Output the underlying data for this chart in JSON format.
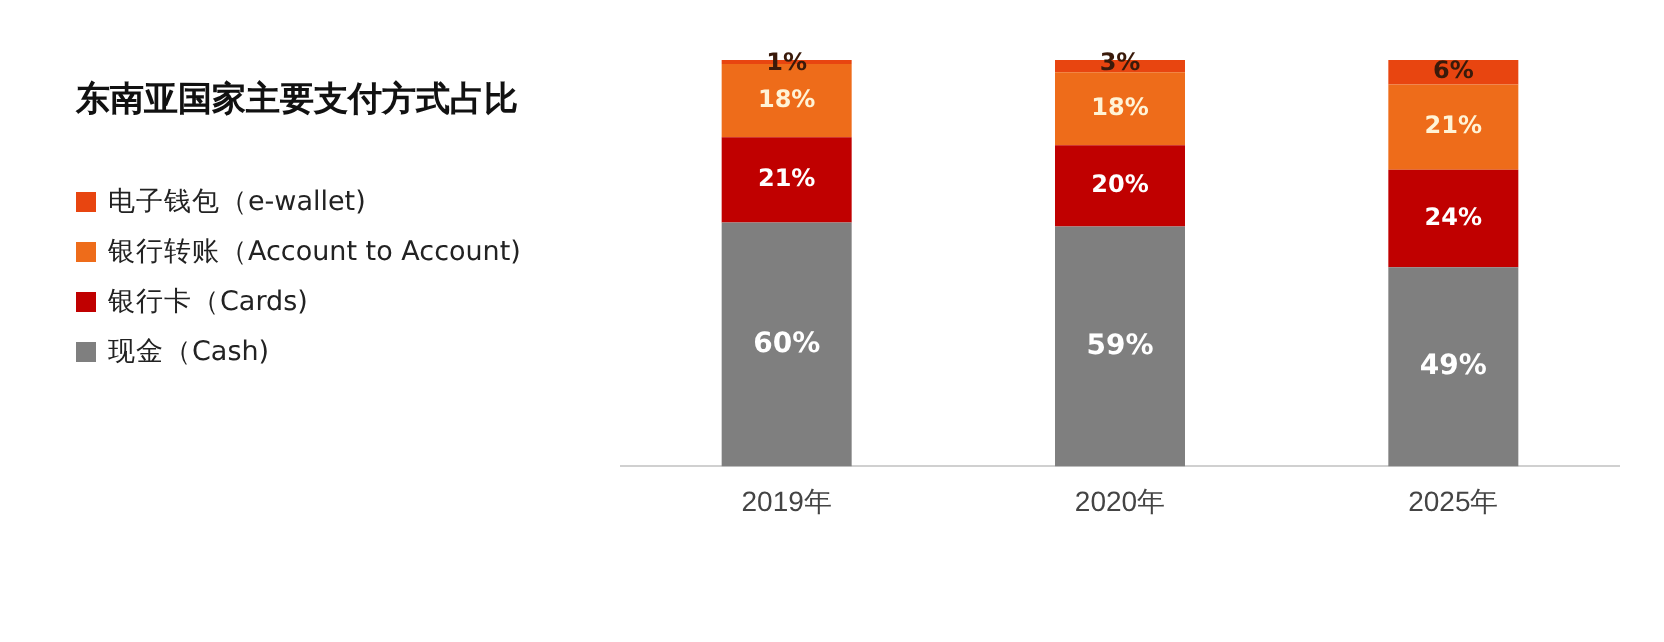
{
  "chart_data": {
    "type": "bar",
    "title": "东南亚国家主要支付方式占比",
    "categories": [
      "2019年",
      "2020年",
      "2025年"
    ],
    "stacked": true,
    "legend": "left",
    "grid": false,
    "series": [
      {
        "name": "现金（Cash)",
        "color": "#7f7f7f",
        "values": [
          60,
          59,
          49
        ],
        "value_labels": [
          "60%",
          "59%",
          "49%"
        ]
      },
      {
        "name": "银行卡（Cards)",
        "color": "#c00000",
        "values": [
          21,
          20,
          24
        ],
        "value_labels": [
          "21%",
          "20%",
          "24%"
        ]
      },
      {
        "name": "银行转账（Account to Account)",
        "color": "#ee6c1a",
        "values": [
          18,
          18,
          21
        ],
        "value_labels": [
          "18%",
          "18%",
          "21%"
        ]
      },
      {
        "name": "电子钱包（e-wallet)",
        "color": "#e84510",
        "values": [
          1,
          3,
          6
        ],
        "value_labels": [
          "1%",
          "3%",
          "6%"
        ]
      }
    ]
  }
}
